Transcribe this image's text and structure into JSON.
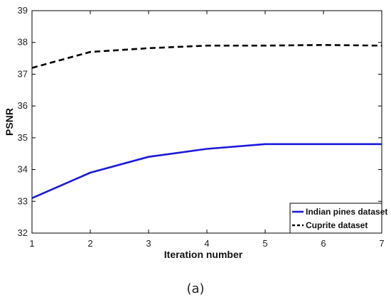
{
  "caption": "(a)",
  "chart_data": {
    "type": "line",
    "xlabel": "Iteration number",
    "ylabel": "PSNR",
    "xlim": [
      1,
      7
    ],
    "ylim": [
      32,
      39
    ],
    "x_ticks": [
      1,
      2,
      3,
      4,
      5,
      6,
      7
    ],
    "y_ticks": [
      32,
      33,
      34,
      35,
      36,
      37,
      38,
      39
    ],
    "grid": false,
    "legend_position": "bottom-right",
    "series": [
      {
        "name": "Indian pines dataset",
        "color": "#1a1adb",
        "style": "solid",
        "x": [
          1,
          2,
          3,
          4,
          5,
          6,
          7
        ],
        "y": [
          33.1,
          33.9,
          34.4,
          34.65,
          34.8,
          34.8,
          34.8
        ]
      },
      {
        "name": "Cuprite dataset",
        "color": "#000000",
        "style": "dashed",
        "x": [
          1,
          2,
          3,
          4,
          5,
          6,
          7
        ],
        "y": [
          37.2,
          37.7,
          37.82,
          37.9,
          37.9,
          37.92,
          37.9
        ]
      }
    ]
  }
}
